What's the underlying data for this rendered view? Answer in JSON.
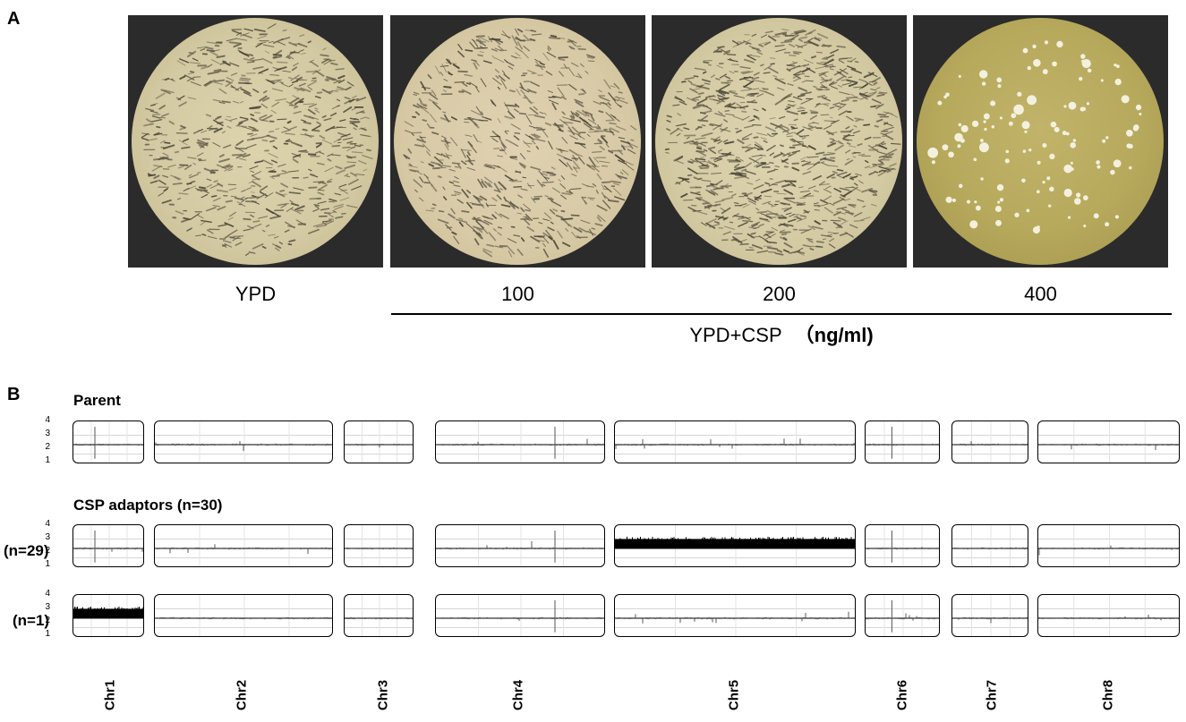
{
  "panel_a": {
    "letter": "A",
    "plates": [
      {
        "label": "YPD",
        "state": "confluent"
      },
      {
        "label": "100",
        "state": "confluent"
      },
      {
        "label": "200",
        "state": "confluent"
      },
      {
        "label": "400",
        "state": "colonies"
      }
    ],
    "bracket_label": "YPD+CSP",
    "bracket_unit": "（ng/ml)"
  },
  "panel_b": {
    "letter": "B",
    "groups": [
      {
        "title": "Parent",
        "row_label": "",
        "trisomy": []
      },
      {
        "title": "CSP adaptors (n=30)",
        "row_label": "(n=29)",
        "trisomy": [
          "Chr5"
        ]
      },
      {
        "title": "",
        "row_label": "(n=1)",
        "trisomy": [
          "Chr1"
        ]
      }
    ],
    "y_ticks": [
      "4",
      "3",
      "2",
      "1"
    ],
    "chromosomes": [
      "Chr1",
      "Chr2",
      "Chr3",
      "Chr4",
      "Chr5",
      "Chr6",
      "Chr7",
      "Chr8"
    ]
  },
  "colors": {
    "plate_background": "#2b2b2b",
    "agar_confluent": "#d8cfa9",
    "agar_clear": "#b9ac62",
    "colony": "#f4f0de",
    "trace": "#000000"
  }
}
